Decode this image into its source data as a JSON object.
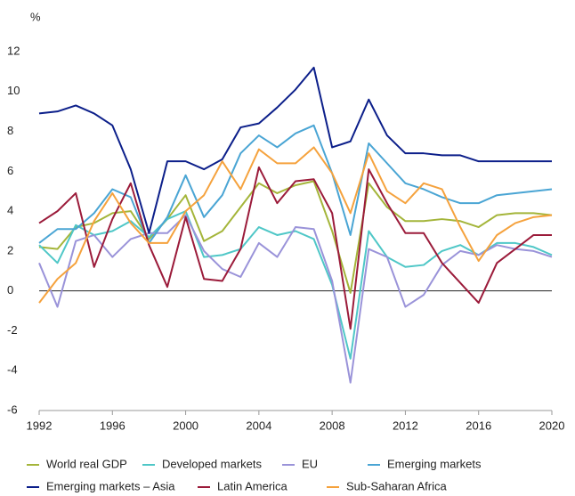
{
  "chart_data": {
    "type": "line",
    "y_label": "%",
    "x": [
      1992,
      1993,
      1994,
      1995,
      1996,
      1997,
      1998,
      1999,
      2000,
      2001,
      2002,
      2003,
      2004,
      2005,
      2006,
      2007,
      2008,
      2009,
      2010,
      2011,
      2012,
      2013,
      2014,
      2015,
      2016,
      2017,
      2018,
      2019,
      2020
    ],
    "xlim": [
      1992,
      2020
    ],
    "xticks": [
      1992,
      1996,
      2000,
      2004,
      2008,
      2012,
      2016,
      2020
    ],
    "ylim": [
      -6,
      12
    ],
    "yticks": [
      -6,
      -4,
      -2,
      0,
      2,
      4,
      6,
      8,
      10,
      12
    ],
    "grid": false,
    "series": [
      {
        "name": "World real GDP",
        "color": "#a4b53a",
        "values": [
          2.2,
          2.1,
          3.2,
          3.4,
          3.9,
          4.0,
          2.6,
          3.6,
          4.8,
          2.5,
          3.0,
          4.2,
          5.4,
          4.9,
          5.3,
          5.5,
          3.0,
          -0.1,
          5.4,
          4.2,
          3.5,
          3.5,
          3.6,
          3.5,
          3.2,
          3.8,
          3.9,
          3.9,
          3.8
        ]
      },
      {
        "name": "Developed markets",
        "color": "#4fc7c7",
        "values": [
          2.3,
          1.4,
          3.3,
          2.8,
          3.0,
          3.5,
          2.7,
          3.6,
          4.0,
          1.7,
          1.8,
          2.1,
          3.2,
          2.8,
          3.0,
          2.6,
          0.3,
          -3.4,
          3.0,
          1.7,
          1.2,
          1.3,
          2.0,
          2.3,
          1.8,
          2.4,
          2.4,
          2.2,
          1.8
        ]
      },
      {
        "name": "EU",
        "color": "#9a93d9",
        "values": [
          1.4,
          -0.8,
          2.5,
          2.8,
          1.7,
          2.6,
          2.9,
          2.9,
          3.8,
          2.0,
          1.1,
          0.7,
          2.4,
          1.7,
          3.2,
          3.1,
          0.5,
          -4.6,
          2.1,
          1.7,
          -0.8,
          -0.2,
          1.3,
          2.0,
          1.8,
          2.3,
          2.1,
          2.0,
          1.7
        ]
      },
      {
        "name": "Emerging markets",
        "color": "#4aa5d4",
        "values": [
          2.4,
          3.1,
          3.1,
          3.9,
          5.1,
          4.7,
          2.4,
          3.7,
          5.8,
          3.7,
          4.8,
          6.9,
          7.8,
          7.2,
          7.9,
          8.3,
          5.9,
          2.8,
          7.4,
          6.4,
          5.4,
          5.1,
          4.7,
          4.4,
          4.4,
          4.8,
          4.9,
          5.0,
          5.1
        ]
      },
      {
        "name": "Emerging markets – Asia",
        "color": "#0c1f8a",
        "values": [
          8.9,
          9.0,
          9.3,
          8.9,
          8.3,
          6.1,
          2.9,
          6.5,
          6.5,
          6.1,
          6.6,
          8.2,
          8.4,
          9.2,
          10.1,
          11.2,
          7.2,
          7.5,
          9.6,
          7.8,
          6.9,
          6.9,
          6.8,
          6.8,
          6.5,
          6.5,
          6.5,
          6.5,
          6.5
        ]
      },
      {
        "name": "Latin America",
        "color": "#9b1b3a",
        "values": [
          3.4,
          4.0,
          4.9,
          1.2,
          3.6,
          5.4,
          2.3,
          0.2,
          3.7,
          0.6,
          0.5,
          2.1,
          6.2,
          4.4,
          5.5,
          5.6,
          3.9,
          -1.9,
          6.1,
          4.4,
          2.9,
          2.9,
          1.4,
          0.4,
          -0.6,
          1.4,
          2.1,
          2.8,
          2.8
        ]
      },
      {
        "name": "Sub-Saharan Africa",
        "color": "#f5a23d",
        "values": [
          -0.6,
          0.6,
          1.4,
          3.5,
          4.9,
          3.4,
          2.4,
          2.4,
          4.0,
          4.8,
          6.5,
          5.1,
          7.1,
          6.4,
          6.4,
          7.2,
          5.9,
          3.9,
          6.9,
          5.0,
          4.4,
          5.4,
          5.1,
          3.2,
          1.5,
          2.8,
          3.4,
          3.7,
          3.8
        ]
      }
    ]
  }
}
